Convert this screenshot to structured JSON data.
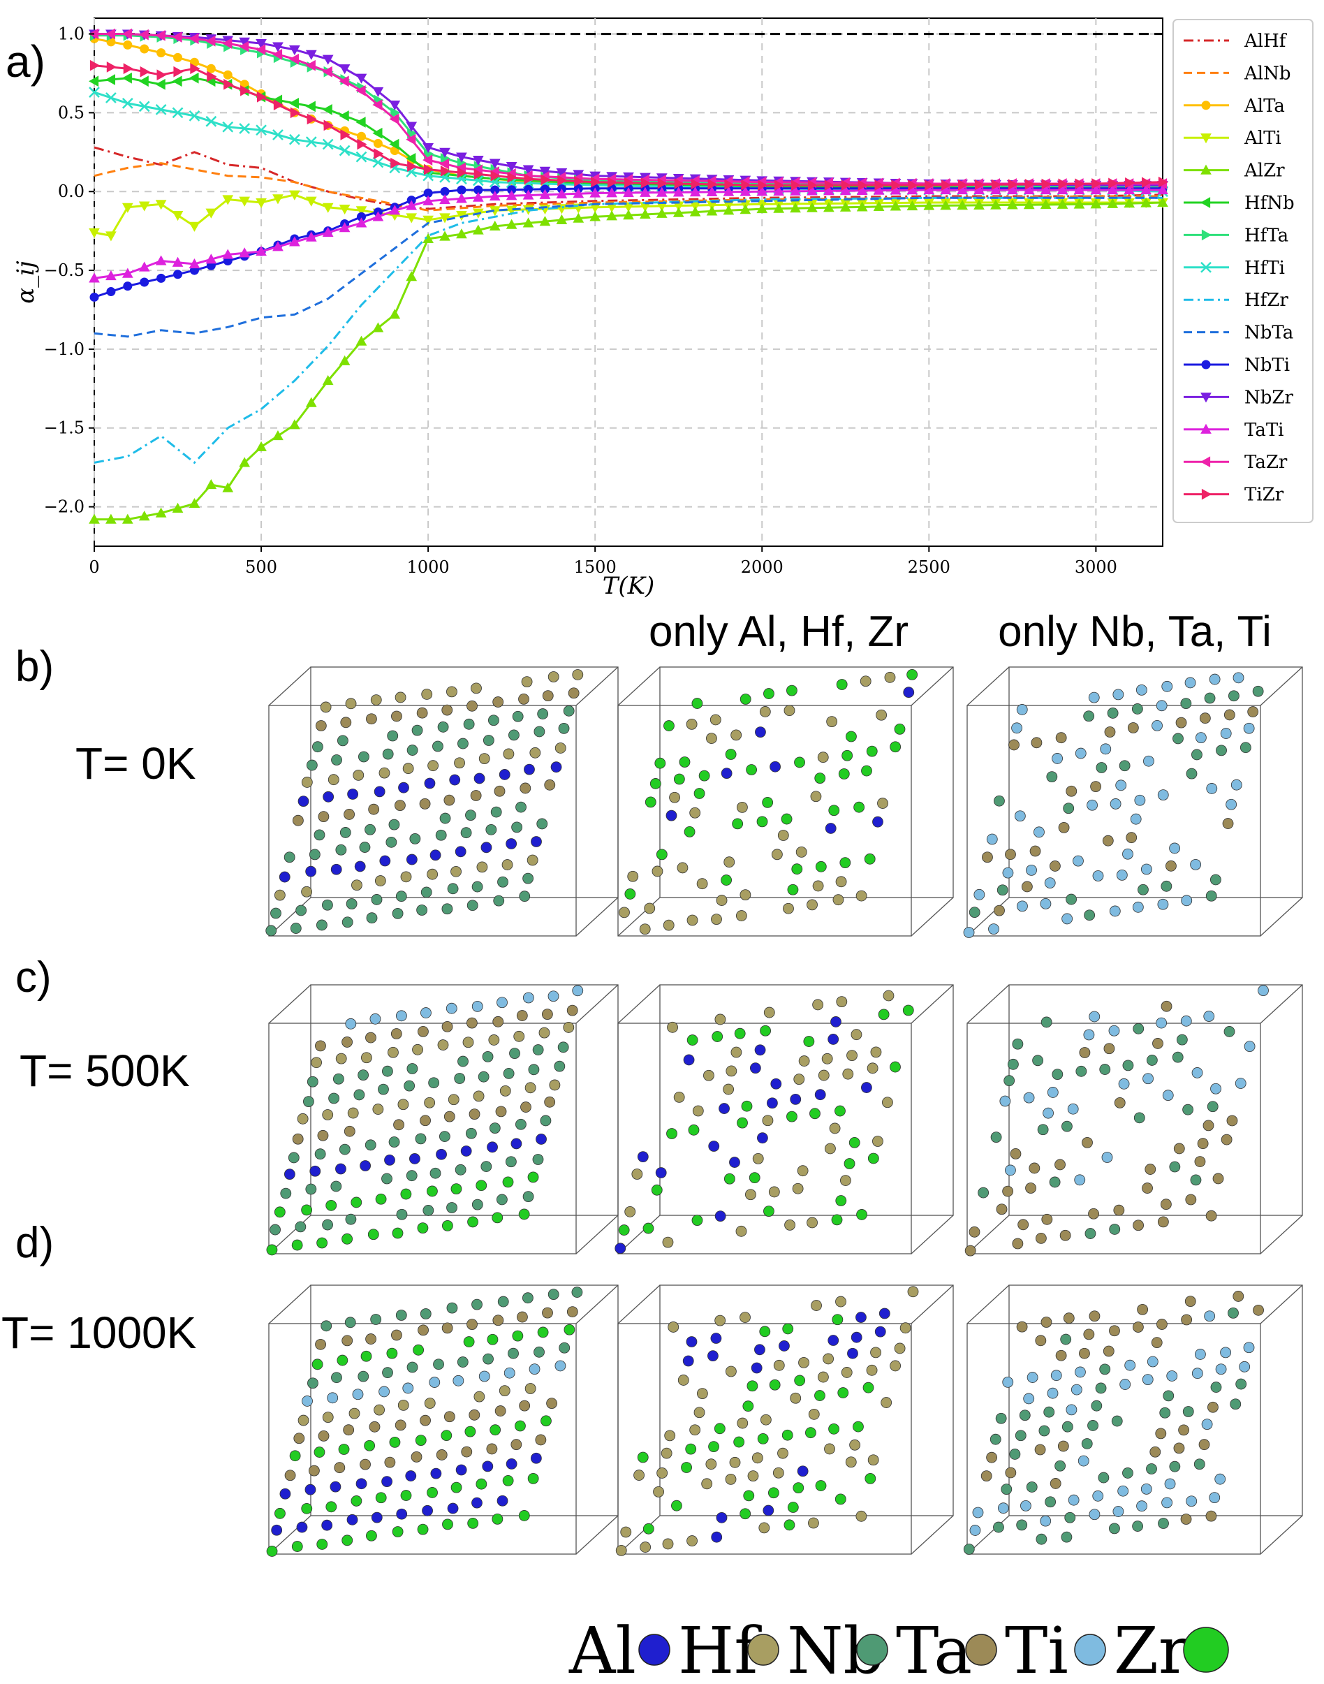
{
  "panel_labels": {
    "a": "a)",
    "b": "b)",
    "c": "c)",
    "d": "d)"
  },
  "column_headers": {
    "subset1": "only Al, Hf, Zr",
    "subset2": "only Nb, Ta, Ti"
  },
  "row_temperatures": {
    "b": "T= 0K",
    "c": "T= 500K",
    "d": "T= 1000K"
  },
  "element_legend": [
    {
      "symbol": "Al",
      "color": "#1f1fcf"
    },
    {
      "symbol": "Hf",
      "color": "#a89e62"
    },
    {
      "symbol": "Nb",
      "color": "#4f9a74"
    },
    {
      "symbol": "Ta",
      "color": "#9c8a57"
    },
    {
      "symbol": "Ti",
      "color": "#7fbbe0"
    },
    {
      "symbol": "Zr",
      "color": "#22cc22"
    }
  ],
  "chart_data": {
    "type": "line",
    "xlabel": "T(K)",
    "ylabel": "α_ij",
    "xlim": [
      0,
      3200
    ],
    "ylim": [
      -2.25,
      1.1
    ],
    "xticks": [
      "0",
      "500",
      "1000",
      "1500",
      "2000",
      "2500",
      "3000"
    ],
    "yticks": [
      "1.0",
      "0.5",
      "0.0",
      "−0.5",
      "−1.0",
      "−1.5",
      "−2.0"
    ],
    "grid": true,
    "legend_position": "right",
    "reference_line": 1.0,
    "series": [
      {
        "name": "AlHf",
        "color": "#d62728",
        "style": "dashdot",
        "marker": "none",
        "points": [
          [
            0,
            0.28
          ],
          [
            100,
            0.22
          ],
          [
            200,
            0.17
          ],
          [
            300,
            0.25
          ],
          [
            400,
            0.17
          ],
          [
            500,
            0.15
          ],
          [
            600,
            0.06
          ],
          [
            700,
            0.0
          ],
          [
            800,
            -0.05
          ],
          [
            900,
            -0.09
          ],
          [
            1000,
            -0.11
          ],
          [
            1200,
            -0.08
          ],
          [
            1500,
            -0.06
          ],
          [
            2000,
            -0.04
          ],
          [
            2500,
            -0.03
          ],
          [
            3000,
            -0.03
          ],
          [
            3200,
            -0.02
          ]
        ]
      },
      {
        "name": "AlNb",
        "color": "#ff7f0e",
        "style": "dashed",
        "marker": "none",
        "points": [
          [
            0,
            0.1
          ],
          [
            100,
            0.15
          ],
          [
            200,
            0.18
          ],
          [
            300,
            0.14
          ],
          [
            400,
            0.1
          ],
          [
            500,
            0.09
          ],
          [
            600,
            0.06
          ],
          [
            700,
            0.0
          ],
          [
            800,
            -0.04
          ],
          [
            900,
            -0.08
          ],
          [
            1000,
            -0.12
          ],
          [
            1200,
            -0.09
          ],
          [
            1500,
            -0.07
          ],
          [
            2000,
            -0.05
          ],
          [
            2500,
            -0.04
          ],
          [
            3000,
            -0.03
          ],
          [
            3200,
            -0.03
          ]
        ]
      },
      {
        "name": "AlTa",
        "color": "#ffbf00",
        "style": "solid",
        "marker": "circle",
        "points": [
          [
            0,
            0.97
          ],
          [
            100,
            0.93
          ],
          [
            200,
            0.88
          ],
          [
            300,
            0.82
          ],
          [
            400,
            0.74
          ],
          [
            500,
            0.62
          ],
          [
            600,
            0.5
          ],
          [
            700,
            0.42
          ],
          [
            800,
            0.35
          ],
          [
            900,
            0.26
          ],
          [
            1000,
            0.14
          ],
          [
            1100,
            0.1
          ],
          [
            1300,
            0.06
          ],
          [
            1500,
            0.04
          ],
          [
            2000,
            0.02
          ],
          [
            2500,
            0.02
          ],
          [
            3000,
            0.02
          ],
          [
            3200,
            0.02
          ]
        ]
      },
      {
        "name": "AlTi",
        "color": "#c8f000",
        "style": "solid",
        "marker": "triangle-down",
        "points": [
          [
            0,
            -0.26
          ],
          [
            50,
            -0.28
          ],
          [
            100,
            -0.1
          ],
          [
            200,
            -0.08
          ],
          [
            300,
            -0.22
          ],
          [
            400,
            -0.05
          ],
          [
            500,
            -0.07
          ],
          [
            600,
            -0.02
          ],
          [
            700,
            -0.1
          ],
          [
            800,
            -0.12
          ],
          [
            900,
            -0.15
          ],
          [
            1000,
            -0.18
          ],
          [
            1200,
            -0.12
          ],
          [
            1500,
            -0.1
          ],
          [
            2000,
            -0.08
          ],
          [
            2500,
            -0.07
          ],
          [
            3000,
            -0.07
          ],
          [
            3200,
            -0.07
          ]
        ]
      },
      {
        "name": "AlZr",
        "color": "#7ee000",
        "style": "solid",
        "marker": "triangle-up",
        "points": [
          [
            0,
            -2.08
          ],
          [
            100,
            -2.08
          ],
          [
            200,
            -2.04
          ],
          [
            300,
            -1.98
          ],
          [
            350,
            -1.86
          ],
          [
            400,
            -1.88
          ],
          [
            450,
            -1.72
          ],
          [
            500,
            -1.62
          ],
          [
            600,
            -1.48
          ],
          [
            700,
            -1.2
          ],
          [
            800,
            -0.95
          ],
          [
            900,
            -0.78
          ],
          [
            1000,
            -0.3
          ],
          [
            1100,
            -0.27
          ],
          [
            1200,
            -0.22
          ],
          [
            1500,
            -0.16
          ],
          [
            2000,
            -0.11
          ],
          [
            2500,
            -0.09
          ],
          [
            3000,
            -0.08
          ],
          [
            3200,
            -0.07
          ]
        ]
      },
      {
        "name": "HfNb",
        "color": "#22d322",
        "style": "solid",
        "marker": "triangle-left",
        "points": [
          [
            0,
            0.7
          ],
          [
            100,
            0.72
          ],
          [
            200,
            0.68
          ],
          [
            300,
            0.72
          ],
          [
            400,
            0.68
          ],
          [
            500,
            0.6
          ],
          [
            600,
            0.56
          ],
          [
            700,
            0.52
          ],
          [
            800,
            0.44
          ],
          [
            900,
            0.3
          ],
          [
            1000,
            0.12
          ],
          [
            1200,
            0.08
          ],
          [
            1500,
            0.05
          ],
          [
            2000,
            0.03
          ],
          [
            2500,
            0.03
          ],
          [
            3000,
            0.02
          ],
          [
            3200,
            0.02
          ]
        ]
      },
      {
        "name": "HfTa",
        "color": "#2ee07a",
        "style": "solid",
        "marker": "triangle-right",
        "points": [
          [
            0,
            0.99
          ],
          [
            100,
            0.99
          ],
          [
            200,
            0.98
          ],
          [
            300,
            0.96
          ],
          [
            400,
            0.92
          ],
          [
            500,
            0.88
          ],
          [
            600,
            0.82
          ],
          [
            700,
            0.76
          ],
          [
            800,
            0.66
          ],
          [
            900,
            0.5
          ],
          [
            1000,
            0.24
          ],
          [
            1100,
            0.18
          ],
          [
            1300,
            0.1
          ],
          [
            1500,
            0.07
          ],
          [
            2000,
            0.05
          ],
          [
            2500,
            0.04
          ],
          [
            3000,
            0.03
          ],
          [
            3200,
            0.03
          ]
        ]
      },
      {
        "name": "HfTi",
        "color": "#2ee0c8",
        "style": "solid",
        "marker": "x",
        "points": [
          [
            0,
            0.63
          ],
          [
            100,
            0.56
          ],
          [
            200,
            0.52
          ],
          [
            300,
            0.48
          ],
          [
            400,
            0.41
          ],
          [
            500,
            0.39
          ],
          [
            600,
            0.33
          ],
          [
            700,
            0.3
          ],
          [
            800,
            0.22
          ],
          [
            900,
            0.15
          ],
          [
            1000,
            0.1
          ],
          [
            1200,
            0.06
          ],
          [
            1500,
            0.04
          ],
          [
            2000,
            0.02
          ],
          [
            2500,
            0.01
          ],
          [
            3000,
            0.01
          ],
          [
            3200,
            0.0
          ]
        ]
      },
      {
        "name": "HfZr",
        "color": "#1fbce8",
        "style": "dashdot",
        "marker": "none",
        "points": [
          [
            0,
            -1.72
          ],
          [
            100,
            -1.68
          ],
          [
            200,
            -1.55
          ],
          [
            300,
            -1.72
          ],
          [
            400,
            -1.5
          ],
          [
            500,
            -1.38
          ],
          [
            600,
            -1.2
          ],
          [
            700,
            -0.98
          ],
          [
            800,
            -0.72
          ],
          [
            900,
            -0.5
          ],
          [
            1000,
            -0.28
          ],
          [
            1100,
            -0.2
          ],
          [
            1300,
            -0.12
          ],
          [
            1500,
            -0.08
          ],
          [
            2000,
            -0.05
          ],
          [
            2500,
            -0.04
          ],
          [
            3000,
            -0.04
          ],
          [
            3200,
            -0.04
          ]
        ]
      },
      {
        "name": "NbTa",
        "color": "#1f6fdc",
        "style": "dashed",
        "marker": "none",
        "points": [
          [
            0,
            -0.9
          ],
          [
            100,
            -0.92
          ],
          [
            200,
            -0.88
          ],
          [
            300,
            -0.9
          ],
          [
            400,
            -0.86
          ],
          [
            500,
            -0.8
          ],
          [
            600,
            -0.78
          ],
          [
            700,
            -0.68
          ],
          [
            800,
            -0.52
          ],
          [
            900,
            -0.36
          ],
          [
            1000,
            -0.2
          ],
          [
            1200,
            -0.12
          ],
          [
            1500,
            -0.08
          ],
          [
            2000,
            -0.06
          ],
          [
            2500,
            -0.04
          ],
          [
            3000,
            -0.04
          ],
          [
            3200,
            -0.04
          ]
        ]
      },
      {
        "name": "NbTi",
        "color": "#1a1ae0",
        "style": "solid",
        "marker": "circle",
        "points": [
          [
            0,
            -0.67
          ],
          [
            100,
            -0.6
          ],
          [
            200,
            -0.55
          ],
          [
            300,
            -0.5
          ],
          [
            400,
            -0.44
          ],
          [
            500,
            -0.38
          ],
          [
            600,
            -0.3
          ],
          [
            700,
            -0.25
          ],
          [
            800,
            -0.16
          ],
          [
            900,
            -0.1
          ],
          [
            1000,
            -0.01
          ],
          [
            1100,
            0.01
          ],
          [
            1200,
            0.01
          ],
          [
            1500,
            0.02
          ],
          [
            2000,
            0.02
          ],
          [
            2500,
            0.02
          ],
          [
            3000,
            0.02
          ],
          [
            3200,
            0.02
          ]
        ]
      },
      {
        "name": "NbZr",
        "color": "#7a1fe0",
        "style": "solid",
        "marker": "triangle-down",
        "points": [
          [
            0,
            1.0
          ],
          [
            100,
            1.0
          ],
          [
            200,
            0.99
          ],
          [
            300,
            0.98
          ],
          [
            400,
            0.96
          ],
          [
            500,
            0.94
          ],
          [
            600,
            0.9
          ],
          [
            700,
            0.84
          ],
          [
            800,
            0.72
          ],
          [
            900,
            0.55
          ],
          [
            1000,
            0.28
          ],
          [
            1100,
            0.22
          ],
          [
            1300,
            0.14
          ],
          [
            1500,
            0.1
          ],
          [
            2000,
            0.07
          ],
          [
            2500,
            0.05
          ],
          [
            3000,
            0.04
          ],
          [
            3200,
            0.04
          ]
        ]
      },
      {
        "name": "TaTi",
        "color": "#dd22dd",
        "style": "solid",
        "marker": "triangle-up",
        "points": [
          [
            0,
            -0.55
          ],
          [
            100,
            -0.52
          ],
          [
            200,
            -0.44
          ],
          [
            300,
            -0.46
          ],
          [
            400,
            -0.4
          ],
          [
            500,
            -0.38
          ],
          [
            600,
            -0.32
          ],
          [
            700,
            -0.26
          ],
          [
            800,
            -0.2
          ],
          [
            900,
            -0.12
          ],
          [
            1000,
            -0.06
          ],
          [
            1200,
            -0.03
          ],
          [
            1500,
            -0.01
          ],
          [
            2000,
            0.0
          ],
          [
            2500,
            0.01
          ],
          [
            3000,
            0.01
          ],
          [
            3200,
            0.01
          ]
        ]
      },
      {
        "name": "TaZr",
        "color": "#ee22aa",
        "style": "solid",
        "marker": "triangle-left",
        "points": [
          [
            0,
            1.0
          ],
          [
            100,
            1.0
          ],
          [
            200,
            0.99
          ],
          [
            300,
            0.97
          ],
          [
            400,
            0.94
          ],
          [
            500,
            0.9
          ],
          [
            600,
            0.84
          ],
          [
            700,
            0.76
          ],
          [
            800,
            0.64
          ],
          [
            900,
            0.46
          ],
          [
            1000,
            0.2
          ],
          [
            1100,
            0.15
          ],
          [
            1300,
            0.1
          ],
          [
            1500,
            0.08
          ],
          [
            2000,
            0.06
          ],
          [
            2500,
            0.05
          ],
          [
            3000,
            0.05
          ],
          [
            3200,
            0.05
          ]
        ]
      },
      {
        "name": "TiZr",
        "color": "#ee2266",
        "style": "solid",
        "marker": "triangle-right",
        "points": [
          [
            0,
            0.8
          ],
          [
            100,
            0.78
          ],
          [
            200,
            0.74
          ],
          [
            300,
            0.78
          ],
          [
            400,
            0.68
          ],
          [
            500,
            0.6
          ],
          [
            600,
            0.5
          ],
          [
            700,
            0.42
          ],
          [
            800,
            0.3
          ],
          [
            900,
            0.18
          ],
          [
            1000,
            0.14
          ],
          [
            1100,
            0.12
          ],
          [
            1300,
            0.08
          ],
          [
            1500,
            0.06
          ],
          [
            2000,
            0.04
          ],
          [
            2500,
            0.04
          ],
          [
            3000,
            0.05
          ],
          [
            3200,
            0.06
          ]
        ]
      }
    ]
  }
}
